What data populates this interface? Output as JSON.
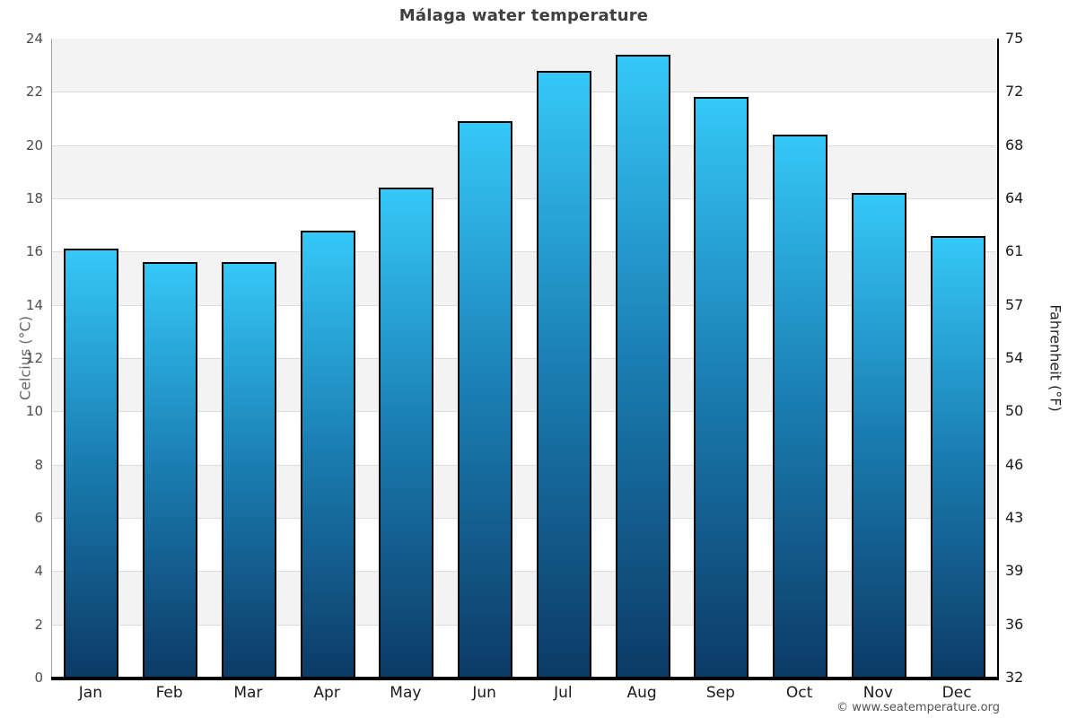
{
  "chart_data": {
    "type": "bar",
    "title": "Málaga water temperature",
    "categories": [
      "Jan",
      "Feb",
      "Mar",
      "Apr",
      "May",
      "Jun",
      "Jul",
      "Aug",
      "Sep",
      "Oct",
      "Nov",
      "Dec"
    ],
    "values": [
      16.1,
      15.6,
      15.6,
      16.8,
      18.4,
      20.9,
      22.8,
      23.4,
      21.8,
      20.4,
      18.2,
      16.6
    ],
    "ylabel_left": "Celcius (°C)",
    "ylabel_right": "Fahrenheit (°F)",
    "ylim": [
      0,
      24
    ],
    "yticks_celsius": [
      0,
      2,
      4,
      6,
      8,
      10,
      12,
      14,
      16,
      18,
      20,
      22,
      24
    ],
    "yticks_fahrenheit": [
      32,
      36,
      39,
      43,
      46,
      50,
      54,
      57,
      61,
      64,
      68,
      72,
      75
    ],
    "legend": "none",
    "grid": "alternating-horizontal-bands-starting-gray-at-top",
    "colors": {
      "bar_gradient_top": "#35c8f8",
      "bar_gradient_mid": "#1a7cb0",
      "bar_gradient_bottom": "#0c3a66",
      "bar_border": "#000000",
      "band_fill": "#f3f3f3",
      "gridline": "#dcdcdc",
      "left_axis_line": "#a6a6a6",
      "right_axis_line": "#000000",
      "bottom_axis_line": "#000000"
    }
  },
  "footer": {
    "copyright": "© www.seatemperature.org"
  }
}
